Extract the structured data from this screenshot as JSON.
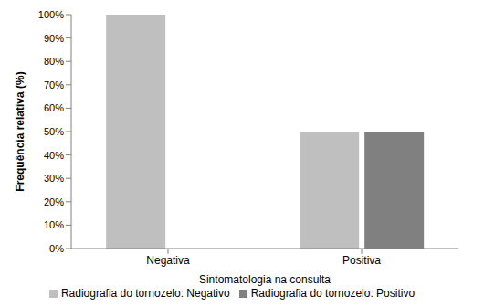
{
  "chart_data": {
    "type": "bar",
    "xlabel": "Sintomatologia na consulta",
    "ylabel": "Frequência relativa (%)",
    "categories": [
      "Negativa",
      "Positiva"
    ],
    "series": [
      {
        "name": "Radiografia do tornozelo: Negativo",
        "color": "#bfbfbf",
        "values": [
          100,
          50
        ]
      },
      {
        "name": "Radiografia do tornozelo: Positivo",
        "color": "#808080",
        "values": [
          0,
          50
        ]
      }
    ],
    "ylim": [
      0,
      100
    ],
    "yticks": [
      {
        "value": 0,
        "label": "0%"
      },
      {
        "value": 10,
        "label": "10%"
      },
      {
        "value": 20,
        "label": "20%"
      },
      {
        "value": 30,
        "label": "30%"
      },
      {
        "value": 40,
        "label": "40%"
      },
      {
        "value": 50,
        "label": "50%"
      },
      {
        "value": 60,
        "label": "60%"
      },
      {
        "value": 70,
        "label": "70%"
      },
      {
        "value": 80,
        "label": "80%"
      },
      {
        "value": 90,
        "label": "90%"
      },
      {
        "value": 100,
        "label": "100%"
      }
    ],
    "grid": false,
    "legend": "bottom"
  }
}
